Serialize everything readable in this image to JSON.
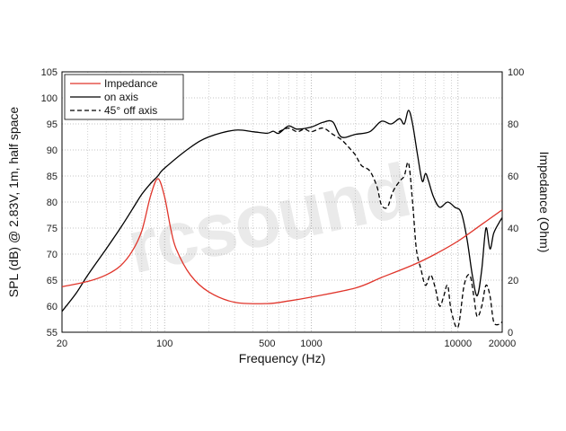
{
  "watermark": "rcsound",
  "chart_data": {
    "type": "line",
    "xscale": "log",
    "xlim": [
      20,
      20000
    ],
    "ylim": [
      55,
      105
    ],
    "y2lim": [
      0,
      100
    ],
    "xlabel": "Frequency (Hz)",
    "ylabel": "SPL (dB) @ 2.83V, 1m, half space",
    "y2label": "Impedance (Ohm)",
    "grid": true,
    "legend_position": "top-left",
    "x_tick_labels": [
      "20",
      "100",
      "500",
      "1000",
      "10000",
      "20000"
    ],
    "y_tick_labels": [
      "55",
      "60",
      "65",
      "70",
      "75",
      "80",
      "85",
      "90",
      "95",
      "100",
      "105"
    ],
    "y2_tick_labels": [
      "0",
      "20",
      "40",
      "60",
      "80",
      "100"
    ],
    "colors": {
      "impedance": "#e0352b",
      "on_axis": "#000000",
      "off_axis": "#000000"
    },
    "series": [
      {
        "name": "Impedance",
        "axis": "right",
        "style": "solid",
        "points": [
          [
            20,
            17.5
          ],
          [
            30,
            19.5
          ],
          [
            40,
            22
          ],
          [
            50,
            25.5
          ],
          [
            60,
            31
          ],
          [
            70,
            39
          ],
          [
            80,
            52
          ],
          [
            90,
            59
          ],
          [
            100,
            52
          ],
          [
            110,
            40
          ],
          [
            120,
            32
          ],
          [
            150,
            22
          ],
          [
            200,
            15.5
          ],
          [
            300,
            11.5
          ],
          [
            500,
            11
          ],
          [
            700,
            12
          ],
          [
            1000,
            13.5
          ],
          [
            2000,
            17
          ],
          [
            3000,
            21
          ],
          [
            5000,
            26
          ],
          [
            7000,
            30
          ],
          [
            10000,
            35
          ],
          [
            15000,
            42
          ],
          [
            20000,
            47
          ]
        ]
      },
      {
        "name": "on axis",
        "axis": "left",
        "style": "solid",
        "points": [
          [
            20,
            59
          ],
          [
            25,
            62.5
          ],
          [
            30,
            66
          ],
          [
            40,
            71
          ],
          [
            50,
            75
          ],
          [
            60,
            78.5
          ],
          [
            70,
            81.5
          ],
          [
            80,
            83.5
          ],
          [
            90,
            85
          ],
          [
            100,
            86.5
          ],
          [
            150,
            90.5
          ],
          [
            200,
            92.5
          ],
          [
            300,
            93.8
          ],
          [
            400,
            93.5
          ],
          [
            500,
            93.2
          ],
          [
            550,
            93.6
          ],
          [
            600,
            93.2
          ],
          [
            700,
            94.6
          ],
          [
            800,
            94
          ],
          [
            1000,
            94.4
          ],
          [
            1200,
            95.3
          ],
          [
            1400,
            95.4
          ],
          [
            1600,
            92.5
          ],
          [
            2000,
            93
          ],
          [
            2500,
            93.5
          ],
          [
            3000,
            95.5
          ],
          [
            3500,
            95
          ],
          [
            4000,
            96
          ],
          [
            4300,
            95
          ],
          [
            4600,
            97.6
          ],
          [
            4900,
            95
          ],
          [
            5300,
            89
          ],
          [
            5700,
            84
          ],
          [
            6000,
            85.5
          ],
          [
            6300,
            84
          ],
          [
            6800,
            81
          ],
          [
            7500,
            79
          ],
          [
            8500,
            80
          ],
          [
            9500,
            79
          ],
          [
            10500,
            78
          ],
          [
            11500,
            73
          ],
          [
            12500,
            66
          ],
          [
            13500,
            62
          ],
          [
            14500,
            67
          ],
          [
            15500,
            75
          ],
          [
            16500,
            71
          ],
          [
            17500,
            74
          ],
          [
            19000,
            76
          ],
          [
            20000,
            77
          ]
        ]
      },
      {
        "name": "45° off axis",
        "axis": "left",
        "style": "dashed",
        "points": [
          [
            600,
            93.5
          ],
          [
            700,
            94.2
          ],
          [
            800,
            93.5
          ],
          [
            900,
            94
          ],
          [
            1000,
            93.5
          ],
          [
            1200,
            94.2
          ],
          [
            1400,
            93
          ],
          [
            1600,
            92
          ],
          [
            1800,
            90.5
          ],
          [
            2000,
            89
          ],
          [
            2200,
            87
          ],
          [
            2500,
            86
          ],
          [
            2800,
            83
          ],
          [
            3000,
            79.5
          ],
          [
            3300,
            79
          ],
          [
            3600,
            82
          ],
          [
            4000,
            84
          ],
          [
            4300,
            85
          ],
          [
            4600,
            87.5
          ],
          [
            4900,
            80
          ],
          [
            5200,
            71
          ],
          [
            5600,
            67
          ],
          [
            6000,
            64
          ],
          [
            6500,
            66
          ],
          [
            7000,
            63.5
          ],
          [
            7500,
            60
          ],
          [
            8000,
            62
          ],
          [
            8500,
            64
          ],
          [
            9000,
            59
          ],
          [
            10000,
            56
          ],
          [
            11000,
            64
          ],
          [
            12000,
            66
          ],
          [
            12800,
            62
          ],
          [
            13500,
            58
          ],
          [
            14500,
            60
          ],
          [
            15500,
            64
          ],
          [
            16500,
            62
          ],
          [
            17500,
            57
          ],
          [
            19000,
            56.5
          ],
          [
            20000,
            57
          ]
        ]
      }
    ]
  }
}
